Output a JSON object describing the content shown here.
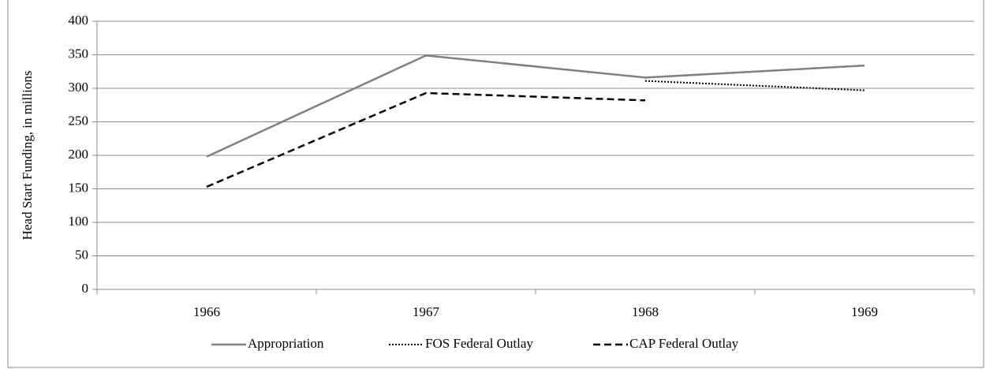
{
  "chart_data": {
    "type": "line",
    "y_label": "Head Start Funding, in millions",
    "categories": [
      "1966",
      "1967",
      "1968",
      "1969"
    ],
    "series": [
      {
        "name": "Appropriation",
        "color": "#808080",
        "dash": "solid",
        "values": [
          198,
          349,
          316,
          334
        ]
      },
      {
        "name": "FOS Federal Outlay",
        "color": "#000000",
        "dash": "dotted",
        "values": [
          null,
          null,
          311,
          297
        ]
      },
      {
        "name": "CAP Federal Outlay",
        "color": "#000000",
        "dash": "dashed",
        "values": [
          153,
          293,
          282,
          null
        ]
      }
    ],
    "ylim": [
      0,
      400
    ],
    "yticks": [
      0,
      50,
      100,
      150,
      200,
      250,
      300,
      350,
      400
    ],
    "grid": true,
    "legend": "bottom"
  }
}
